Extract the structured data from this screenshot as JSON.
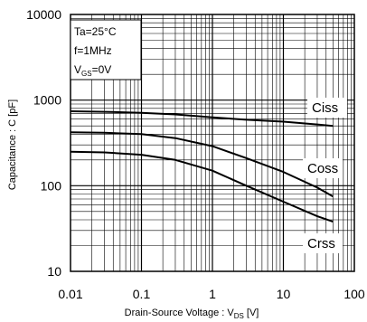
{
  "chart_data": {
    "type": "line",
    "x_scale": "log",
    "y_scale": "log",
    "xlim": [
      0.01,
      100
    ],
    "ylim": [
      10,
      10000
    ],
    "xlabel": {
      "main": "Drain-Source Voltage : V",
      "sub": "DS",
      "unit": " [V]"
    },
    "ylabel": "Capacitance : C [pF]",
    "x_ticks": [
      "0.01",
      "0.1",
      "1",
      "10",
      "100"
    ],
    "y_ticks": [
      "10",
      "100",
      "1000",
      "10000"
    ],
    "grid": true,
    "conditions": {
      "temp": "Ta=25°C",
      "freq": "f=1MHz",
      "vgs_main": "V",
      "vgs_sub": "GS",
      "vgs_val": "=0V"
    },
    "series": [
      {
        "name": "Ciss",
        "x": [
          0.01,
          0.03,
          0.1,
          0.3,
          1,
          3,
          10,
          30,
          50
        ],
        "y": [
          740,
          730,
          710,
          680,
          630,
          590,
          560,
          520,
          500
        ]
      },
      {
        "name": "Coss",
        "x": [
          0.01,
          0.03,
          0.1,
          0.3,
          1,
          3,
          10,
          30,
          50
        ],
        "y": [
          420,
          415,
          400,
          360,
          290,
          210,
          145,
          95,
          75
        ]
      },
      {
        "name": "Crss",
        "x": [
          0.01,
          0.03,
          0.1,
          0.3,
          1,
          3,
          10,
          30,
          50
        ],
        "y": [
          250,
          245,
          230,
          200,
          150,
          100,
          65,
          44,
          38
        ]
      }
    ]
  }
}
